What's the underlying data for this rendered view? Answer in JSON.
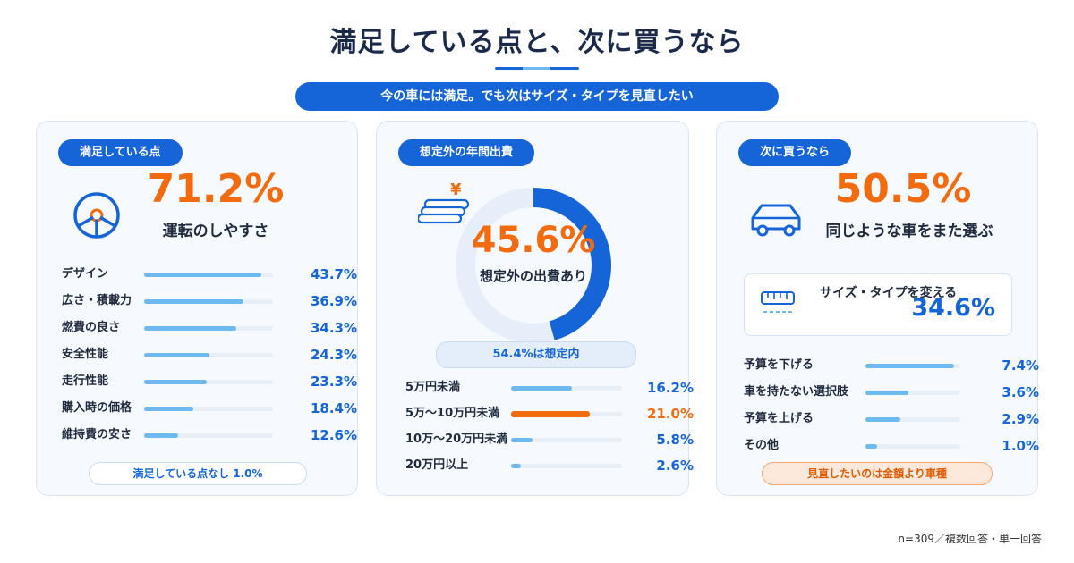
{
  "header": {
    "title": "満足している点と、次に買うなら",
    "subtitle": "今の車には満足。でも次はサイズ・タイプを見直したい"
  },
  "colors": {
    "primary": "#1565d8",
    "accent": "#f26b0f",
    "bar": "#6dbaf0",
    "track": "#e8eef6"
  },
  "satisfaction": {
    "label": "満足している点",
    "top_pct": "71.2%",
    "top_caption": "運転のしやすさ",
    "icon": "steering-wheel-icon",
    "note": "満足している点なし 1.0%"
  },
  "unexpected": {
    "label": "想定外の年間出費",
    "icon": "yen-coins-icon",
    "donut_pct": "45.6%",
    "donut_caption": "想定外の出費あり",
    "donut_note": "54.4%は想定内"
  },
  "next_purchase": {
    "label": "次に買うなら",
    "icon": "car-icon",
    "top_pct": "50.5%",
    "top_caption": "同じような車をまた選ぶ",
    "highlight_caption": "サイズ・タイプを変える",
    "highlight_pct": "34.6%",
    "highlight_icon": "ruler-icon",
    "note": "見直したいのは金額より車種"
  },
  "footnote": "n=309／複数回答・単一回答",
  "chart_data": [
    {
      "type": "bar",
      "title": "満足している点",
      "categories": [
        "運転のしやすさ",
        "デザイン",
        "広さ・積載力",
        "燃費の良さ",
        "安全性能",
        "走行性能",
        "購入時の価格",
        "維持費の安さ",
        "満足している点なし"
      ],
      "values": [
        71.2,
        43.7,
        36.9,
        34.3,
        24.3,
        23.3,
        18.4,
        12.6,
        1.0
      ],
      "value_labels": [
        "71.2%",
        "43.7%",
        "36.9%",
        "34.3%",
        "24.3%",
        "23.3%",
        "18.4%",
        "12.6%",
        "1.0%"
      ]
    },
    {
      "type": "pie",
      "title": "想定外の年間出費",
      "categories": [
        "想定外の出費あり",
        "想定内"
      ],
      "values": [
        45.6,
        54.4
      ]
    },
    {
      "type": "bar",
      "title": "想定外の年間出費",
      "categories": [
        "5万円未満",
        "5万〜10万円未満",
        "10万〜20万円未満",
        "20万円以上"
      ],
      "values": [
        16.2,
        21.0,
        5.8,
        2.6
      ],
      "value_labels": [
        "16.2%",
        "21.0%",
        "5.8%",
        "2.6%"
      ],
      "highlight_index": 1
    },
    {
      "type": "bar",
      "title": "次に買うなら",
      "categories": [
        "同じような車をまた選ぶ",
        "サイズ・タイプを変える",
        "予算を下げる",
        "車を持たない選択肢",
        "予算を上げる",
        "その他"
      ],
      "values": [
        50.5,
        34.6,
        7.4,
        3.6,
        2.9,
        1.0
      ],
      "value_labels": [
        "50.5%",
        "34.6%",
        "7.4%",
        "3.6%",
        "2.9%",
        "1.0%"
      ]
    }
  ]
}
